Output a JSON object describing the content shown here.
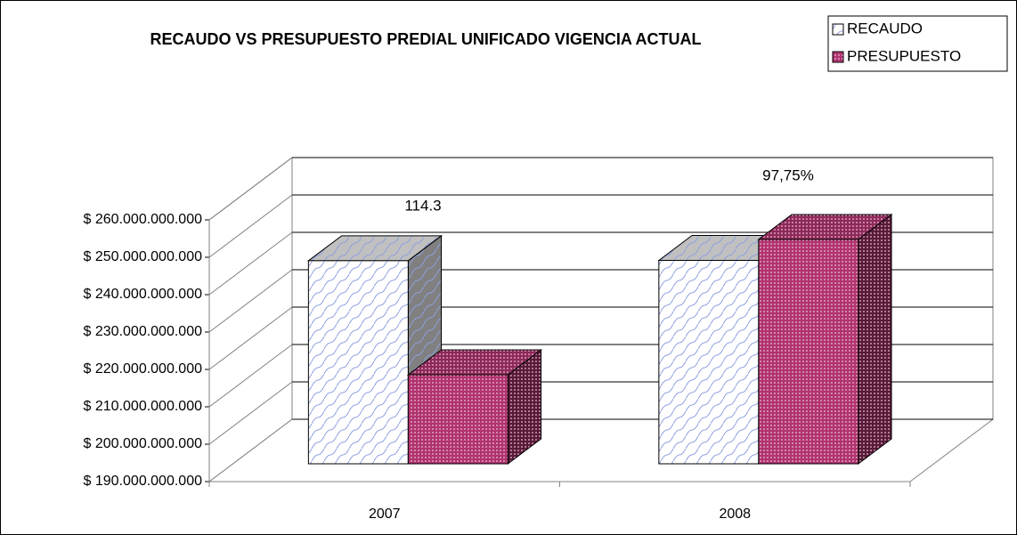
{
  "chart_data": {
    "type": "bar3d",
    "title": "RECAUDO VS PRESUPUESTO PREDIAL UNIFICADO VIGENCIA ACTUAL",
    "categories": [
      "2007",
      "2008"
    ],
    "series": [
      {
        "name": "RECAUDO",
        "color": "#ffffff",
        "values": [
          244300000000,
          244400000000
        ]
      },
      {
        "name": "PRESUPUESTO",
        "color": "#b0336f",
        "values": [
          213800000000,
          250000000000
        ]
      }
    ],
    "annotations": [
      "114.3",
      "97,75%"
    ],
    "ylim": [
      190000000000,
      260000000000
    ],
    "yticks": [
      {
        "value": 190000000000,
        "label": "$ 190.000.000.000"
      },
      {
        "value": 200000000000,
        "label": "$ 200.000.000.000"
      },
      {
        "value": 210000000000,
        "label": "$ 210.000.000.000"
      },
      {
        "value": 220000000000,
        "label": "$ 220.000.000.000"
      },
      {
        "value": 230000000000,
        "label": "$ 230.000.000.000"
      },
      {
        "value": 240000000000,
        "label": "$ 240.000.000.000"
      },
      {
        "value": 250000000000,
        "label": "$ 250.000.000.000"
      },
      {
        "value": 260000000000,
        "label": "$ 260.000.000.000"
      }
    ],
    "grid": true,
    "legend": "top-right"
  }
}
